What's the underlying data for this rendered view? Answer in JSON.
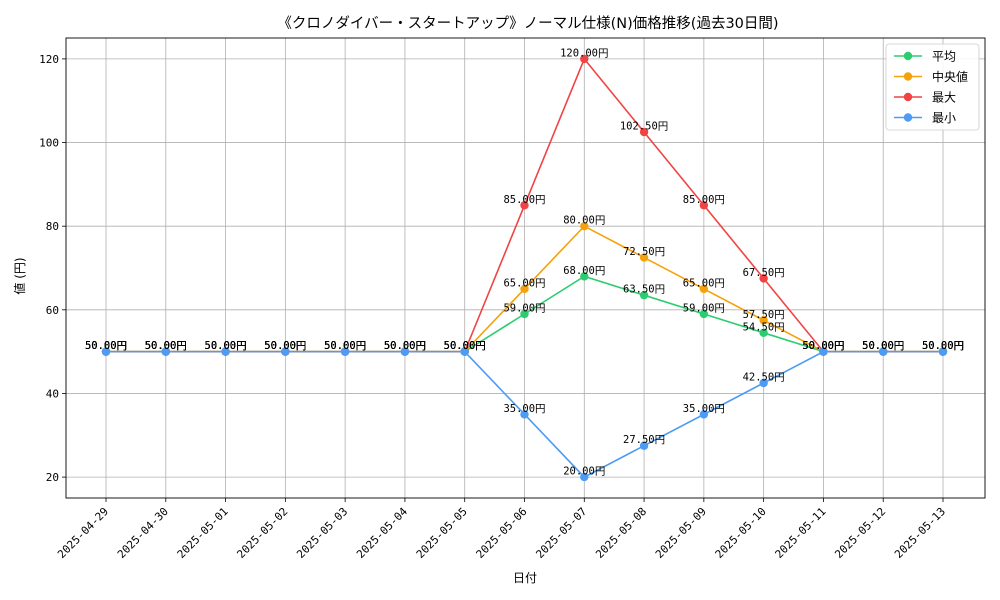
{
  "chart_data": {
    "type": "line",
    "title": "《クロノダイバー・スタートアップ》ノーマル仕様(N)価格推移(過去30日間)",
    "xlabel": "日付",
    "ylabel": "値 (円)",
    "ylim": [
      15,
      125
    ],
    "yticks": [
      20,
      40,
      60,
      80,
      100,
      120
    ],
    "grid": true,
    "legend_position": "top-right",
    "value_suffix": "円",
    "categories": [
      "2025-04-29",
      "2025-04-30",
      "2025-05-01",
      "2025-05-02",
      "2025-05-03",
      "2025-05-04",
      "2025-05-05",
      "2025-05-06",
      "2025-05-07",
      "2025-05-08",
      "2025-05-09",
      "2025-05-10",
      "2025-05-11",
      "2025-05-12",
      "2025-05-13"
    ],
    "series": [
      {
        "name": "平均",
        "color": "#2ecc71",
        "values": [
          50,
          50,
          50,
          50,
          50,
          50,
          50,
          59,
          68,
          63.5,
          59,
          54.5,
          50,
          50,
          50
        ]
      },
      {
        "name": "中央値",
        "color": "#f5a20a",
        "values": [
          50,
          50,
          50,
          50,
          50,
          50,
          50,
          65,
          80,
          72.5,
          65,
          57.5,
          50,
          50,
          50
        ]
      },
      {
        "name": "最大",
        "color": "#f04444",
        "values": [
          50,
          50,
          50,
          50,
          50,
          50,
          50,
          85,
          120,
          102.5,
          85,
          67.5,
          50,
          50,
          50
        ]
      },
      {
        "name": "最小",
        "color": "#4c9bf5",
        "values": [
          50,
          50,
          50,
          50,
          50,
          50,
          50,
          35,
          20,
          27.5,
          35,
          42.5,
          50,
          50,
          50
        ]
      }
    ]
  }
}
